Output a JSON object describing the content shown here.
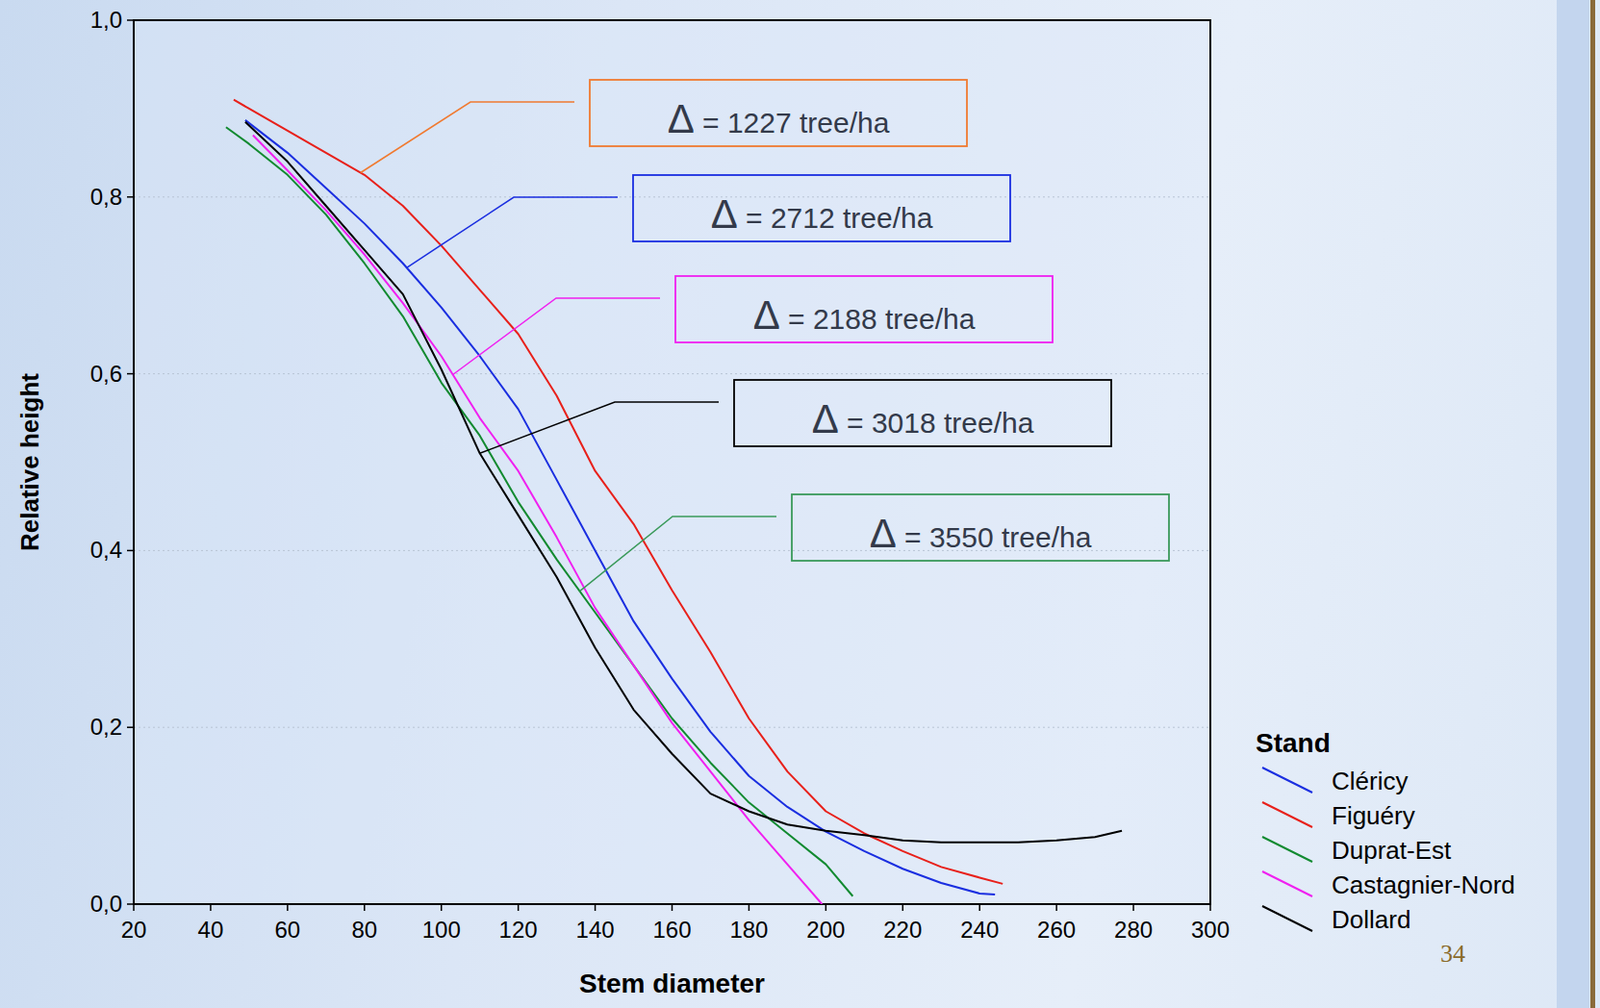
{
  "chart_data": {
    "type": "line",
    "x_label": "Stem diameter",
    "y_label": "Relative height",
    "xlim": [
      20,
      300
    ],
    "ylim": [
      0,
      1
    ],
    "xticks": [
      20,
      40,
      60,
      80,
      100,
      120,
      140,
      160,
      180,
      200,
      220,
      240,
      260,
      280,
      300
    ],
    "yticks": [
      {
        "value": 0,
        "label": "0,0"
      },
      {
        "value": 0.2,
        "label": "0,2"
      },
      {
        "value": 0.4,
        "label": "0,4"
      },
      {
        "value": 0.6,
        "label": "0,6"
      },
      {
        "value": 0.8,
        "label": "0,8"
      },
      {
        "value": 1,
        "label": "1,0"
      }
    ],
    "grid": true,
    "legend": "right",
    "legend_title": "Stand",
    "series": [
      {
        "name": "Cléricy",
        "color": "#1a2ee0",
        "x": [
          49,
          60,
          70,
          80,
          90,
          100,
          110,
          120,
          130,
          140,
          150,
          160,
          170,
          180,
          190,
          200,
          210,
          220,
          230,
          240,
          244
        ],
        "values": [
          0.887,
          0.85,
          0.81,
          0.77,
          0.725,
          0.675,
          0.62,
          0.56,
          0.48,
          0.4,
          0.32,
          0.255,
          0.195,
          0.145,
          0.11,
          0.082,
          0.06,
          0.04,
          0.024,
          0.012,
          0.011
        ]
      },
      {
        "name": "Figuéry",
        "color": "#e8201a",
        "x": [
          46,
          50,
          60,
          70,
          80,
          90,
          100,
          110,
          120,
          130,
          140,
          150,
          160,
          170,
          180,
          190,
          200,
          210,
          220,
          230,
          240,
          246
        ],
        "values": [
          0.91,
          0.9,
          0.875,
          0.85,
          0.825,
          0.79,
          0.745,
          0.695,
          0.645,
          0.575,
          0.49,
          0.43,
          0.355,
          0.285,
          0.21,
          0.15,
          0.105,
          0.08,
          0.06,
          0.042,
          0.03,
          0.023
        ]
      },
      {
        "name": "Duprat-Est",
        "color": "#128a30",
        "x": [
          44,
          50,
          60,
          70,
          80,
          90,
          100,
          110,
          120,
          130,
          140,
          150,
          160,
          170,
          180,
          190,
          200,
          207
        ],
        "values": [
          0.879,
          0.86,
          0.825,
          0.78,
          0.725,
          0.665,
          0.59,
          0.53,
          0.455,
          0.39,
          0.33,
          0.27,
          0.21,
          0.16,
          0.115,
          0.08,
          0.045,
          0.009
        ]
      },
      {
        "name": "Castagnier-Nord",
        "color": "#f020f0",
        "x": [
          51,
          60,
          70,
          80,
          90,
          100,
          110,
          120,
          130,
          140,
          150,
          160,
          170,
          180,
          190,
          199
        ],
        "values": [
          0.87,
          0.83,
          0.785,
          0.735,
          0.68,
          0.62,
          0.55,
          0.49,
          0.415,
          0.335,
          0.27,
          0.205,
          0.15,
          0.095,
          0.045,
          0.0
        ]
      },
      {
        "name": "Dollard",
        "color": "#000000",
        "x": [
          49,
          60,
          70,
          80,
          90,
          100,
          110,
          120,
          130,
          140,
          150,
          160,
          170,
          180,
          190,
          200,
          210,
          220,
          230,
          240,
          250,
          260,
          270,
          277
        ],
        "values": [
          0.885,
          0.84,
          0.79,
          0.74,
          0.69,
          0.605,
          0.51,
          0.44,
          0.37,
          0.29,
          0.22,
          0.17,
          0.125,
          0.105,
          0.09,
          0.083,
          0.078,
          0.072,
          0.07,
          0.07,
          0.07,
          0.072,
          0.076,
          0.083
        ]
      }
    ],
    "annotations": [
      {
        "text": "Δ = 1227 tree/ha",
        "color": "#f07a30",
        "series": "Figuéry",
        "x": 79
      },
      {
        "text": "Δ = 2712 tree/ha",
        "color": "#1a2ee0",
        "series": "Cléricy",
        "x": 91
      },
      {
        "text": "Δ = 2188 tree/ha",
        "color": "#f020f0",
        "series": "Castagnier-Nord",
        "x": 103
      },
      {
        "text": "Δ = 3018 tree/ha",
        "color": "#000000",
        "series": "Dollard",
        "x": 110
      },
      {
        "text": "Δ = 3550 tree/ha",
        "color": "#3a9a5a",
        "series": "Duprat-Est",
        "x": 136
      }
    ],
    "page_number": "34"
  }
}
